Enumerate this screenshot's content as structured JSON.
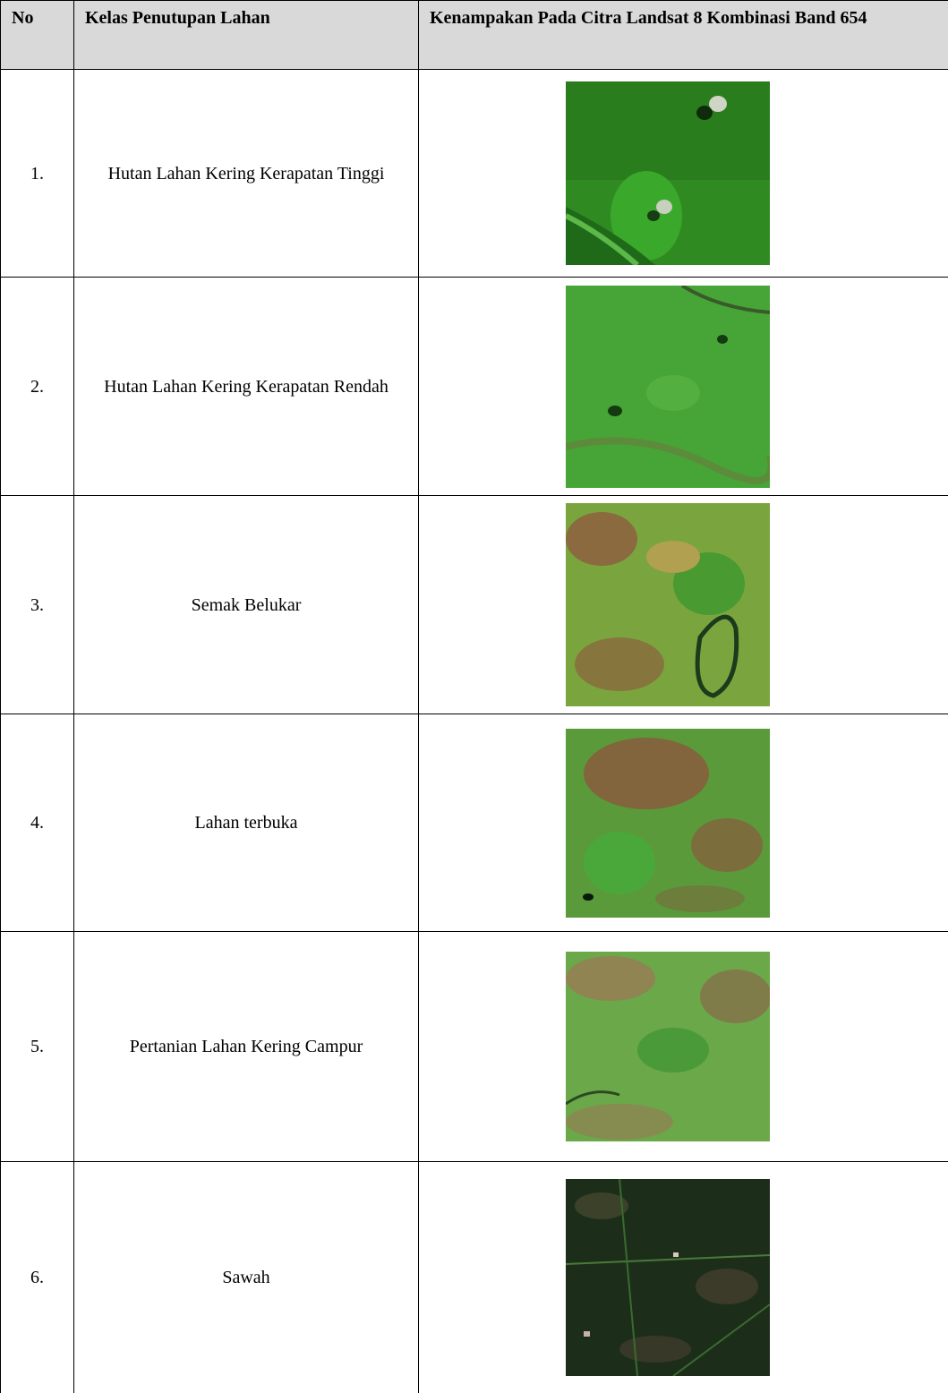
{
  "table": {
    "header": [
      "No",
      "Kelas Penutupan Lahan",
      "Kenampakan Pada Citra Landsat 8 Kombinasi Band 654"
    ],
    "rows": [
      [
        "1.",
        "Hutan Lahan Kering Kerapatan Tinggi"
      ],
      [
        "2.",
        "Hutan Lahan Kering Kerapatan Rendah"
      ],
      [
        "3.",
        "Semak Belukar"
      ],
      [
        "4.",
        "Lahan terbuka"
      ],
      [
        "5.",
        "Pertanian Lahan Kering Campur"
      ],
      [
        "6.",
        "Sawah"
      ]
    ]
  }
}
